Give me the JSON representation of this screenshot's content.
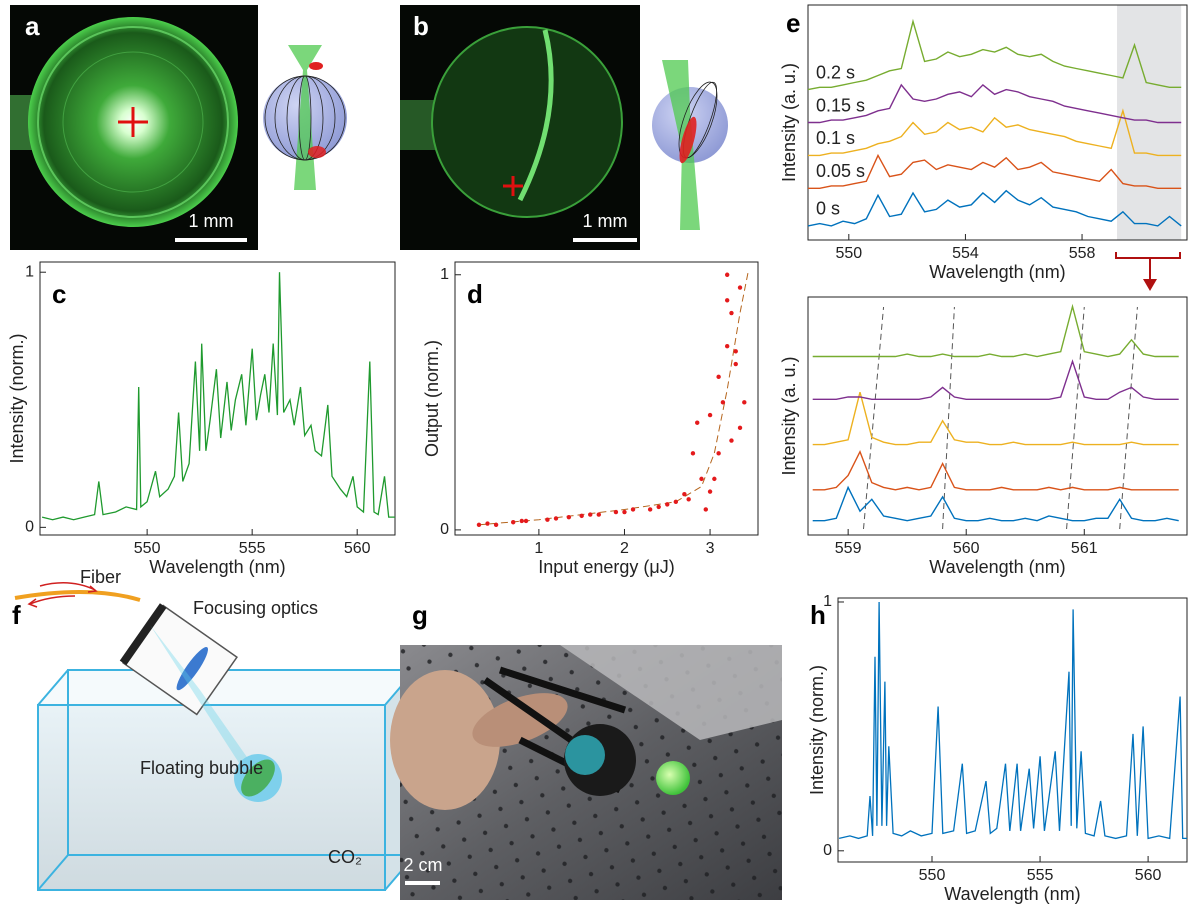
{
  "panel_labels": [
    "a",
    "b",
    "c",
    "d",
    "e",
    "f",
    "g",
    "h"
  ],
  "scale_bars": [
    "1 mm",
    "1 mm",
    "2 cm"
  ],
  "setup": {
    "fiber": "Fiber",
    "optics": "Focusing optics",
    "bubble": "Floating bubble",
    "gas": "CO₂"
  },
  "chart_data": [
    {
      "type": "line",
      "xlabel": "Wavelength (nm)",
      "ylabel": "Intensity (norm.)",
      "color": "#1f9a2e",
      "xlim": [
        544.9,
        561.8
      ],
      "ylim": [
        -0.03,
        1.04
      ],
      "xticks": [
        550,
        555,
        560
      ],
      "yticks": [
        0,
        1
      ],
      "x": [
        545.0,
        545.5,
        546.0,
        546.5,
        547.0,
        547.5,
        547.7,
        547.9,
        548.5,
        549.0,
        549.5,
        549.6,
        549.7,
        550.0,
        550.4,
        550.6,
        551.0,
        551.3,
        551.5,
        551.7,
        552.0,
        552.3,
        552.5,
        552.6,
        552.8,
        553.0,
        553.3,
        553.5,
        553.8,
        554.0,
        554.2,
        554.5,
        554.7,
        555.0,
        555.2,
        555.4,
        555.6,
        555.8,
        556.0,
        556.2,
        556.3,
        556.5,
        556.8,
        557.0,
        557.3,
        557.5,
        557.8,
        558.0,
        558.3,
        558.6,
        558.8,
        559.2,
        559.5,
        559.8,
        560.0,
        560.3,
        560.6,
        560.8,
        561.0,
        561.3,
        561.5,
        561.8
      ],
      "values": [
        0.04,
        0.03,
        0.04,
        0.03,
        0.04,
        0.05,
        0.18,
        0.05,
        0.06,
        0.08,
        0.07,
        0.55,
        0.08,
        0.1,
        0.22,
        0.12,
        0.15,
        0.2,
        0.45,
        0.18,
        0.25,
        0.65,
        0.3,
        0.72,
        0.3,
        0.42,
        0.62,
        0.35,
        0.57,
        0.38,
        0.5,
        0.6,
        0.4,
        0.7,
        0.42,
        0.52,
        0.6,
        0.45,
        0.72,
        0.44,
        1.0,
        0.45,
        0.5,
        0.4,
        0.55,
        0.36,
        0.4,
        0.3,
        0.28,
        0.48,
        0.2,
        0.15,
        0.12,
        0.2,
        0.08,
        0.06,
        0.65,
        0.06,
        0.05,
        0.2,
        0.04,
        0.04
      ]
    },
    {
      "type": "scatter",
      "xlabel": "Input energy (μJ)",
      "ylabel": "Output (norm.)",
      "color": "#e41a1c",
      "xlim": [
        0.02,
        3.56
      ],
      "ylim": [
        -0.02,
        1.05
      ],
      "xticks": [
        1,
        2,
        3
      ],
      "yticks": [
        0,
        1
      ],
      "x": [
        0.3,
        0.4,
        0.5,
        0.7,
        0.8,
        0.85,
        1.1,
        1.2,
        1.35,
        1.5,
        1.6,
        1.7,
        1.9,
        2.0,
        2.1,
        2.3,
        2.4,
        2.5,
        2.6,
        2.7,
        2.75,
        2.8,
        2.85,
        2.9,
        2.95,
        3.0,
        3.0,
        3.05,
        3.1,
        3.1,
        3.15,
        3.2,
        3.2,
        3.25,
        3.25,
        3.3,
        3.35,
        3.4,
        3.35,
        3.2,
        3.3
      ],
      "values": [
        0.02,
        0.025,
        0.02,
        0.03,
        0.035,
        0.035,
        0.04,
        0.045,
        0.05,
        0.055,
        0.06,
        0.06,
        0.07,
        0.07,
        0.08,
        0.08,
        0.09,
        0.1,
        0.11,
        0.14,
        0.12,
        0.3,
        0.42,
        0.2,
        0.08,
        0.15,
        0.45,
        0.2,
        0.6,
        0.3,
        0.5,
        0.72,
        0.9,
        0.85,
        0.35,
        0.65,
        0.4,
        0.5,
        0.95,
        1.0,
        0.7
      ],
      "fit": {
        "color": "#b5651d",
        "x": [
          0.3,
          1,
          2,
          2.6,
          2.9,
          3.05,
          3.2,
          3.35,
          3.45
        ],
        "values": [
          0.02,
          0.04,
          0.08,
          0.11,
          0.17,
          0.3,
          0.55,
          0.85,
          1.02
        ]
      }
    },
    {
      "type": "line",
      "xlabel": "Wavelength (nm)",
      "ylabel": "Intensity (a. u.)",
      "xlim": [
        548.6,
        561.6
      ],
      "ylim": [
        0,
        1
      ],
      "xticks": [
        550,
        554,
        558
      ],
      "highlight": [
        559.2,
        561.4
      ],
      "x": [
        548.6,
        549.0,
        549.4,
        549.8,
        550.2,
        550.6,
        551.0,
        551.4,
        551.8,
        552.2,
        552.6,
        553.0,
        553.4,
        553.8,
        554.2,
        554.6,
        555.0,
        555.4,
        555.8,
        556.2,
        556.6,
        557.0,
        557.4,
        557.8,
        558.2,
        558.6,
        559.0,
        559.4,
        559.8,
        560.2,
        560.6,
        561.0,
        561.4
      ],
      "series": [
        {
          "name": "0 s",
          "color": "#0072bd",
          "values": [
            0.06,
            0.07,
            0.06,
            0.08,
            0.07,
            0.09,
            0.19,
            0.1,
            0.11,
            0.2,
            0.12,
            0.13,
            0.17,
            0.14,
            0.15,
            0.2,
            0.16,
            0.21,
            0.17,
            0.15,
            0.18,
            0.14,
            0.13,
            0.12,
            0.1,
            0.09,
            0.08,
            0.12,
            0.07,
            0.07,
            0.06,
            0.1,
            0.06
          ]
        },
        {
          "name": "0.05 s",
          "color": "#d95319",
          "values": [
            0.22,
            0.22,
            0.23,
            0.23,
            0.24,
            0.25,
            0.36,
            0.27,
            0.28,
            0.33,
            0.34,
            0.3,
            0.32,
            0.31,
            0.3,
            0.33,
            0.31,
            0.35,
            0.3,
            0.31,
            0.33,
            0.29,
            0.28,
            0.27,
            0.26,
            0.25,
            0.3,
            0.24,
            0.23,
            0.23,
            0.22,
            0.22,
            0.22
          ]
        },
        {
          "name": "0.1 s",
          "color": "#edb120",
          "values": [
            0.36,
            0.36,
            0.37,
            0.37,
            0.38,
            0.39,
            0.41,
            0.42,
            0.44,
            0.5,
            0.45,
            0.46,
            0.5,
            0.47,
            0.48,
            0.46,
            0.52,
            0.48,
            0.49,
            0.47,
            0.46,
            0.45,
            0.44,
            0.42,
            0.41,
            0.4,
            0.39,
            0.55,
            0.37,
            0.37,
            0.36,
            0.36,
            0.36
          ]
        },
        {
          "name": "0.15 s",
          "color": "#7e2f8e",
          "values": [
            0.5,
            0.5,
            0.51,
            0.51,
            0.52,
            0.53,
            0.55,
            0.56,
            0.66,
            0.6,
            0.59,
            0.6,
            0.62,
            0.63,
            0.61,
            0.66,
            0.62,
            0.64,
            0.63,
            0.61,
            0.6,
            0.59,
            0.57,
            0.56,
            0.55,
            0.54,
            0.53,
            0.52,
            0.51,
            0.51,
            0.5,
            0.5,
            0.5
          ]
        },
        {
          "name": "0.2 s",
          "color": "#77ac30",
          "values": [
            0.64,
            0.65,
            0.65,
            0.66,
            0.67,
            0.68,
            0.7,
            0.72,
            0.73,
            0.93,
            0.76,
            0.77,
            0.8,
            0.78,
            0.79,
            0.81,
            0.8,
            0.82,
            0.79,
            0.78,
            0.79,
            0.76,
            0.74,
            0.73,
            0.72,
            0.71,
            0.7,
            0.69,
            0.83,
            0.67,
            0.66,
            0.65,
            0.65
          ]
        }
      ]
    },
    {
      "type": "line",
      "xlabel": "Wavelength (nm)",
      "ylabel": "Intensity (a. u.)",
      "xlim": [
        558.66,
        561.87
      ],
      "ylim": [
        0,
        1
      ],
      "xticks": [
        559,
        560,
        561
      ],
      "guides": [
        [
          559.13,
          559.3
        ],
        [
          559.8,
          559.9
        ],
        [
          560.85,
          561.0
        ],
        [
          561.3,
          561.45
        ]
      ],
      "x": [
        558.7,
        558.8,
        558.9,
        559.0,
        559.1,
        559.2,
        559.3,
        559.4,
        559.5,
        559.6,
        559.7,
        559.8,
        559.9,
        560.0,
        560.1,
        560.2,
        560.3,
        560.4,
        560.5,
        560.6,
        560.7,
        560.8,
        560.9,
        561.0,
        561.1,
        561.2,
        561.3,
        561.4,
        561.5,
        561.6,
        561.7,
        561.8
      ],
      "series": [
        {
          "color": "#0072bd",
          "values": [
            0.06,
            0.06,
            0.07,
            0.2,
            0.1,
            0.15,
            0.08,
            0.07,
            0.06,
            0.07,
            0.08,
            0.16,
            0.07,
            0.06,
            0.06,
            0.07,
            0.06,
            0.06,
            0.07,
            0.06,
            0.08,
            0.07,
            0.06,
            0.06,
            0.07,
            0.07,
            0.15,
            0.07,
            0.06,
            0.06,
            0.07,
            0.06
          ]
        },
        {
          "color": "#d95319",
          "values": [
            0.19,
            0.19,
            0.2,
            0.25,
            0.35,
            0.22,
            0.2,
            0.19,
            0.2,
            0.19,
            0.2,
            0.3,
            0.2,
            0.19,
            0.19,
            0.19,
            0.2,
            0.19,
            0.19,
            0.19,
            0.2,
            0.19,
            0.2,
            0.19,
            0.19,
            0.19,
            0.2,
            0.19,
            0.19,
            0.19,
            0.19,
            0.19
          ]
        },
        {
          "color": "#edb120",
          "values": [
            0.38,
            0.38,
            0.39,
            0.4,
            0.6,
            0.41,
            0.39,
            0.38,
            0.38,
            0.39,
            0.39,
            0.48,
            0.4,
            0.39,
            0.39,
            0.38,
            0.38,
            0.39,
            0.38,
            0.38,
            0.38,
            0.38,
            0.39,
            0.38,
            0.38,
            0.38,
            0.38,
            0.39,
            0.38,
            0.38,
            0.38,
            0.38
          ]
        },
        {
          "color": "#7e2f8e",
          "values": [
            0.57,
            0.57,
            0.57,
            0.58,
            0.58,
            0.57,
            0.57,
            0.57,
            0.57,
            0.57,
            0.58,
            0.62,
            0.58,
            0.57,
            0.57,
            0.57,
            0.57,
            0.57,
            0.57,
            0.57,
            0.57,
            0.58,
            0.73,
            0.58,
            0.57,
            0.57,
            0.6,
            0.62,
            0.58,
            0.57,
            0.57,
            0.57
          ]
        },
        {
          "color": "#77ac30",
          "values": [
            0.75,
            0.75,
            0.75,
            0.75,
            0.75,
            0.75,
            0.75,
            0.75,
            0.76,
            0.75,
            0.75,
            0.76,
            0.75,
            0.75,
            0.75,
            0.76,
            0.75,
            0.75,
            0.76,
            0.75,
            0.76,
            0.77,
            0.96,
            0.77,
            0.76,
            0.75,
            0.76,
            0.82,
            0.76,
            0.75,
            0.75,
            0.75
          ]
        }
      ]
    },
    {
      "type": "line",
      "xlabel": "Wavelength (nm)",
      "ylabel": "Intensity (norm.)",
      "color": "#0072bd",
      "xlim": [
        545.65,
        561.8
      ],
      "ylim": [
        -0.045,
        1.016
      ],
      "xticks": [
        550,
        555,
        560
      ],
      "yticks": [
        0,
        1
      ],
      "x": [
        545.7,
        546.2,
        546.6,
        547.0,
        547.13,
        547.25,
        547.36,
        547.45,
        547.55,
        547.68,
        547.82,
        547.9,
        548.0,
        548.2,
        548.6,
        549.0,
        549.5,
        550.0,
        550.28,
        550.5,
        551.0,
        551.4,
        551.6,
        552.0,
        552.5,
        552.7,
        553.0,
        553.4,
        553.6,
        553.94,
        554.1,
        554.5,
        554.7,
        555.0,
        555.2,
        555.7,
        555.9,
        556.34,
        556.44,
        556.53,
        556.7,
        556.9,
        557.1,
        557.5,
        557.8,
        558.0,
        558.5,
        559.0,
        559.3,
        559.5,
        559.77,
        560.0,
        560.5,
        561.0,
        561.48,
        561.6,
        561.8
      ],
      "values": [
        0.05,
        0.06,
        0.05,
        0.06,
        0.22,
        0.06,
        0.78,
        0.1,
        1.0,
        0.1,
        0.68,
        0.1,
        0.42,
        0.07,
        0.06,
        0.08,
        0.06,
        0.07,
        0.58,
        0.07,
        0.08,
        0.35,
        0.07,
        0.08,
        0.28,
        0.07,
        0.09,
        0.35,
        0.08,
        0.35,
        0.08,
        0.33,
        0.09,
        0.38,
        0.08,
        0.4,
        0.08,
        0.72,
        0.1,
        0.97,
        0.09,
        0.4,
        0.07,
        0.06,
        0.2,
        0.06,
        0.05,
        0.06,
        0.47,
        0.06,
        0.5,
        0.05,
        0.06,
        0.05,
        0.62,
        0.05,
        0.05
      ]
    }
  ]
}
